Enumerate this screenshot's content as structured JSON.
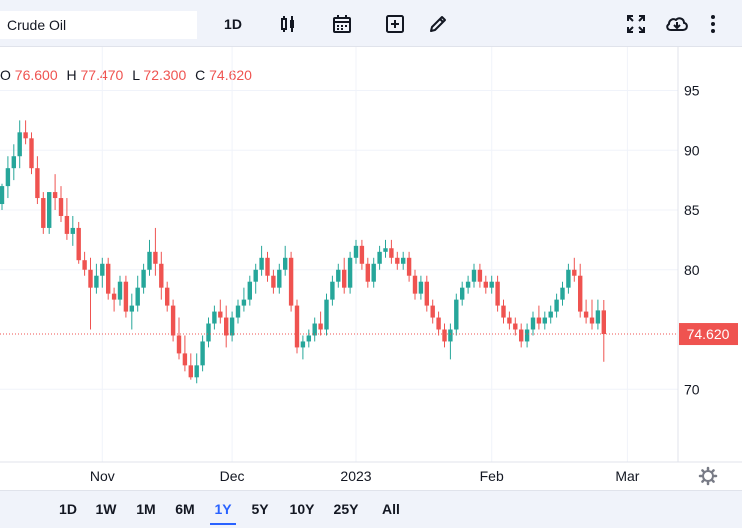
{
  "toolbar": {
    "symbol": "Crude Oil",
    "interval": "1D"
  },
  "ohlc": {
    "open_label": "O",
    "open": "76.600",
    "high_label": "H",
    "high": "77.470",
    "low_label": "L",
    "low": "72.300",
    "close_label": "C",
    "close": "74.620"
  },
  "price_label": "74.620",
  "colors": {
    "up": "#26a69a",
    "down": "#ef5350",
    "accent": "#2962ff"
  },
  "range_buttons": [
    "1D",
    "1W",
    "1M",
    "6M",
    "1Y",
    "5Y",
    "10Y",
    "25Y",
    "All"
  ],
  "active_range": "1Y",
  "chart_data": {
    "type": "candlestick",
    "y_ticks": [
      95,
      90,
      85,
      80,
      70
    ],
    "x_ticks": [
      {
        "label": "Nov",
        "index": 17
      },
      {
        "label": "Dec",
        "index": 39
      },
      {
        "label": "2023",
        "index": 60
      },
      {
        "label": "Feb",
        "index": 83
      },
      {
        "label": "Mar",
        "index": 106
      }
    ],
    "last_price": 74.62,
    "candles": [
      [
        85.5,
        87.2,
        85.0,
        87.0
      ],
      [
        87.0,
        89.5,
        86.0,
        88.5
      ],
      [
        88.5,
        90.5,
        87.5,
        89.5
      ],
      [
        89.5,
        92.5,
        88.5,
        91.5
      ],
      [
        91.5,
        92.5,
        90.5,
        91.0
      ],
      [
        91.0,
        91.5,
        88.0,
        88.5
      ],
      [
        88.5,
        89.5,
        85.5,
        86.0
      ],
      [
        86.0,
        86.5,
        83.0,
        83.5
      ],
      [
        83.5,
        86.5,
        83.0,
        86.5
      ],
      [
        86.5,
        88.0,
        85.0,
        86.0
      ],
      [
        86.0,
        87.0,
        84.0,
        84.5
      ],
      [
        84.5,
        86.0,
        82.5,
        83.0
      ],
      [
        83.0,
        84.5,
        82.0,
        83.5
      ],
      [
        83.5,
        84.0,
        80.5,
        80.8
      ],
      [
        80.8,
        81.5,
        79.5,
        80.0
      ],
      [
        80.0,
        81.0,
        75.0,
        78.5
      ],
      [
        78.5,
        80.5,
        78.0,
        79.5
      ],
      [
        79.5,
        81.0,
        78.5,
        80.5
      ],
      [
        80.5,
        81.0,
        77.5,
        78.0
      ],
      [
        78.0,
        78.5,
        76.5,
        77.5
      ],
      [
        77.5,
        79.5,
        77.0,
        79.0
      ],
      [
        79.0,
        79.5,
        76.0,
        76.5
      ],
      [
        76.5,
        78.0,
        75.0,
        77.0
      ],
      [
        77.0,
        79.5,
        76.5,
        78.5
      ],
      [
        78.5,
        80.5,
        78.0,
        80.0
      ],
      [
        80.0,
        82.5,
        79.5,
        81.5
      ],
      [
        81.5,
        83.5,
        79.5,
        80.5
      ],
      [
        80.5,
        81.5,
        77.5,
        78.5
      ],
      [
        78.5,
        79.0,
        76.5,
        77.0
      ],
      [
        77.0,
        77.5,
        74.0,
        74.5
      ],
      [
        74.5,
        76.0,
        72.5,
        73.0
      ],
      [
        73.0,
        74.5,
        71.5,
        72.0
      ],
      [
        72.0,
        73.0,
        70.8,
        71.0
      ],
      [
        71.0,
        73.0,
        70.5,
        72.0
      ],
      [
        72.0,
        74.5,
        71.5,
        74.0
      ],
      [
        74.0,
        76.0,
        73.5,
        75.5
      ],
      [
        75.5,
        77.0,
        75.0,
        76.5
      ],
      [
        76.5,
        77.5,
        75.5,
        76.0
      ],
      [
        76.0,
        77.0,
        73.5,
        74.5
      ],
      [
        74.5,
        76.5,
        74.0,
        76.0
      ],
      [
        76.0,
        77.5,
        75.5,
        77.0
      ],
      [
        77.0,
        78.5,
        76.5,
        77.5
      ],
      [
        77.5,
        79.5,
        77.0,
        79.0
      ],
      [
        79.0,
        80.5,
        78.0,
        80.0
      ],
      [
        80.0,
        82.0,
        79.5,
        81.0
      ],
      [
        81.0,
        81.5,
        79.0,
        79.5
      ],
      [
        79.5,
        80.0,
        78.0,
        78.5
      ],
      [
        78.5,
        80.5,
        78.0,
        80.0
      ],
      [
        80.0,
        82.0,
        79.5,
        81.0
      ],
      [
        81.0,
        81.5,
        76.5,
        77.0
      ],
      [
        77.0,
        77.5,
        73.0,
        73.5
      ],
      [
        73.5,
        74.5,
        72.5,
        74.0
      ],
      [
        74.0,
        75.0,
        73.5,
        74.5
      ],
      [
        74.5,
        76.0,
        74.0,
        75.5
      ],
      [
        75.5,
        76.5,
        74.5,
        75.0
      ],
      [
        75.0,
        78.0,
        74.5,
        77.5
      ],
      [
        77.5,
        79.5,
        77.0,
        79.0
      ],
      [
        79.0,
        80.5,
        78.5,
        80.0
      ],
      [
        80.0,
        81.0,
        78.0,
        78.5
      ],
      [
        78.5,
        81.5,
        78.0,
        81.0
      ],
      [
        81.0,
        82.5,
        80.5,
        82.0
      ],
      [
        82.0,
        82.5,
        80.0,
        80.5
      ],
      [
        80.5,
        81.0,
        78.5,
        79.0
      ],
      [
        79.0,
        81.0,
        78.5,
        80.5
      ],
      [
        80.5,
        82.0,
        80.0,
        81.5
      ],
      [
        81.5,
        82.5,
        81.0,
        81.8
      ],
      [
        81.8,
        82.5,
        80.5,
        81.0
      ],
      [
        81.0,
        81.5,
        80.0,
        80.5
      ],
      [
        80.5,
        81.5,
        80.0,
        81.0
      ],
      [
        81.0,
        81.5,
        79.0,
        79.5
      ],
      [
        79.5,
        80.0,
        77.5,
        78.0
      ],
      [
        78.0,
        79.5,
        77.5,
        79.0
      ],
      [
        79.0,
        79.5,
        76.5,
        77.0
      ],
      [
        77.0,
        77.5,
        75.5,
        76.0
      ],
      [
        76.0,
        76.5,
        74.5,
        75.0
      ],
      [
        75.0,
        75.5,
        73.5,
        74.0
      ],
      [
        74.0,
        75.5,
        72.5,
        75.0
      ],
      [
        75.0,
        78.0,
        74.5,
        77.5
      ],
      [
        77.5,
        79.0,
        77.0,
        78.5
      ],
      [
        78.5,
        79.5,
        78.0,
        79.0
      ],
      [
        79.0,
        80.5,
        78.5,
        80.0
      ],
      [
        80.0,
        80.5,
        78.5,
        79.0
      ],
      [
        79.0,
        79.5,
        78.0,
        78.5
      ],
      [
        78.5,
        79.5,
        78.0,
        79.0
      ],
      [
        79.0,
        79.5,
        76.5,
        77.0
      ],
      [
        77.0,
        77.5,
        75.5,
        76.0
      ],
      [
        76.0,
        76.5,
        75.0,
        75.5
      ],
      [
        75.5,
        76.0,
        74.5,
        75.0
      ],
      [
        75.0,
        75.5,
        73.5,
        74.0
      ],
      [
        74.0,
        75.5,
        73.5,
        75.0
      ],
      [
        75.0,
        76.5,
        74.5,
        76.0
      ],
      [
        76.0,
        77.0,
        75.0,
        75.5
      ],
      [
        75.5,
        76.5,
        75.0,
        76.0
      ],
      [
        76.0,
        77.0,
        75.5,
        76.5
      ],
      [
        76.5,
        78.0,
        76.0,
        77.5
      ],
      [
        77.5,
        79.0,
        77.0,
        78.5
      ],
      [
        78.5,
        80.5,
        78.0,
        80.0
      ],
      [
        80.0,
        81.0,
        79.0,
        79.5
      ],
      [
        79.5,
        80.5,
        76.0,
        76.5
      ],
      [
        76.5,
        77.5,
        75.5,
        76.0
      ],
      [
        76.0,
        77.5,
        75.0,
        75.5
      ],
      [
        75.5,
        77.5,
        75.0,
        76.6
      ],
      [
        76.6,
        77.47,
        72.3,
        74.62
      ]
    ]
  }
}
